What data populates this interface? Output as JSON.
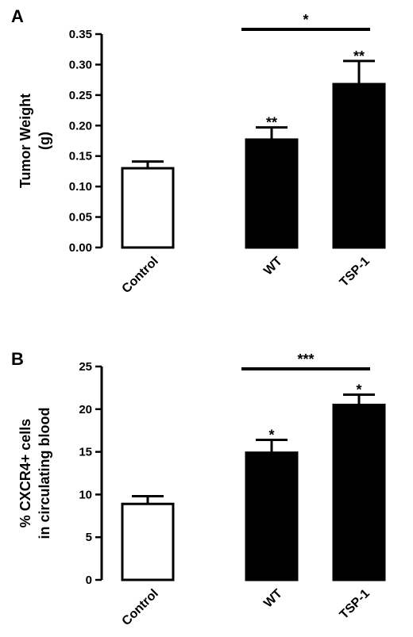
{
  "colors": {
    "ink": "#000000",
    "background": "#ffffff"
  },
  "chart_data": [
    {
      "panel": "A",
      "type": "bar",
      "categories": [
        "Control",
        "WT",
        "TSP-1"
      ],
      "values": [
        0.13,
        0.177,
        0.268
      ],
      "errors": [
        0.011,
        0.02,
        0.038
      ],
      "bar_fills": [
        "white",
        "black",
        "black"
      ],
      "ylabel_lines": [
        "Tumor Weight",
        "(g)"
      ],
      "ylim": [
        0,
        0.35
      ],
      "yticks": [
        "0.00",
        "0.05",
        "0.10",
        "0.15",
        "0.20",
        "0.25",
        "0.30",
        "0.35"
      ],
      "annotations": [
        {
          "target": "WT",
          "text": "**"
        },
        {
          "target": "TSP-1",
          "text": "**"
        }
      ],
      "brackets": [
        {
          "from": "WT",
          "to": "TSP-1",
          "text": "*"
        }
      ],
      "grid": false
    },
    {
      "panel": "B",
      "type": "bar",
      "categories": [
        "Control",
        "WT",
        "TSP-1"
      ],
      "values": [
        8.9,
        14.9,
        20.5
      ],
      "errors": [
        0.9,
        1.5,
        1.2
      ],
      "bar_fills": [
        "white",
        "black",
        "black"
      ],
      "ylabel_lines": [
        "% CXCR4+ cells",
        "in circulating blood"
      ],
      "ylim": [
        0,
        25
      ],
      "yticks": [
        "0",
        "5",
        "10",
        "15",
        "20",
        "25"
      ],
      "annotations": [
        {
          "target": "WT",
          "text": "*"
        },
        {
          "target": "TSP-1",
          "text": "*"
        }
      ],
      "brackets": [
        {
          "from": "WT",
          "to": "TSP-1",
          "text": "***"
        }
      ],
      "grid": false
    }
  ]
}
